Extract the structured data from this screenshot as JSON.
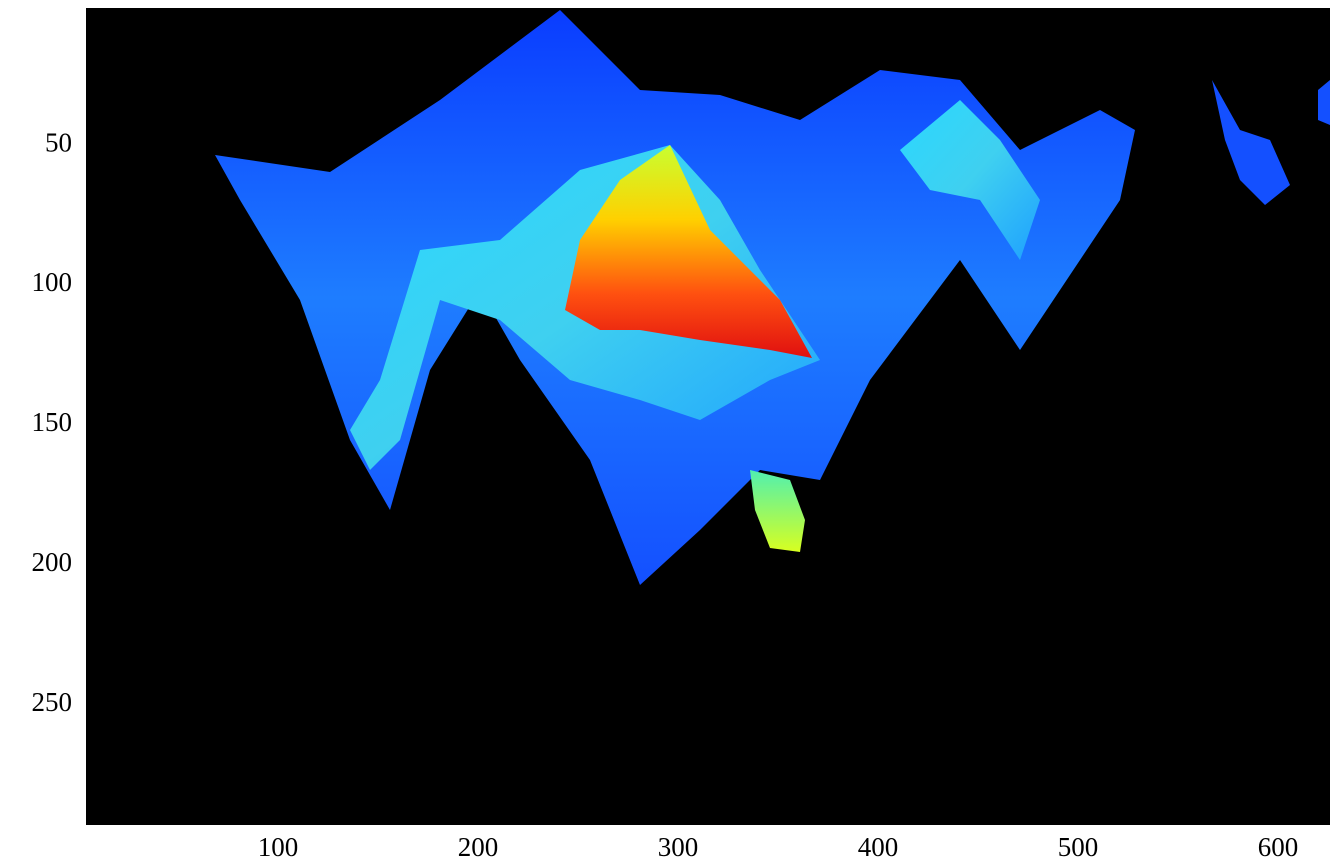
{
  "chart_data": {
    "type": "image",
    "xlim": [
      4,
      626
    ],
    "ylim": [
      293,
      1
    ],
    "xticks": [
      100,
      200,
      300,
      400,
      500,
      600
    ],
    "yticks": [
      50,
      100,
      150,
      200,
      250
    ],
    "background": "#000000"
  }
}
